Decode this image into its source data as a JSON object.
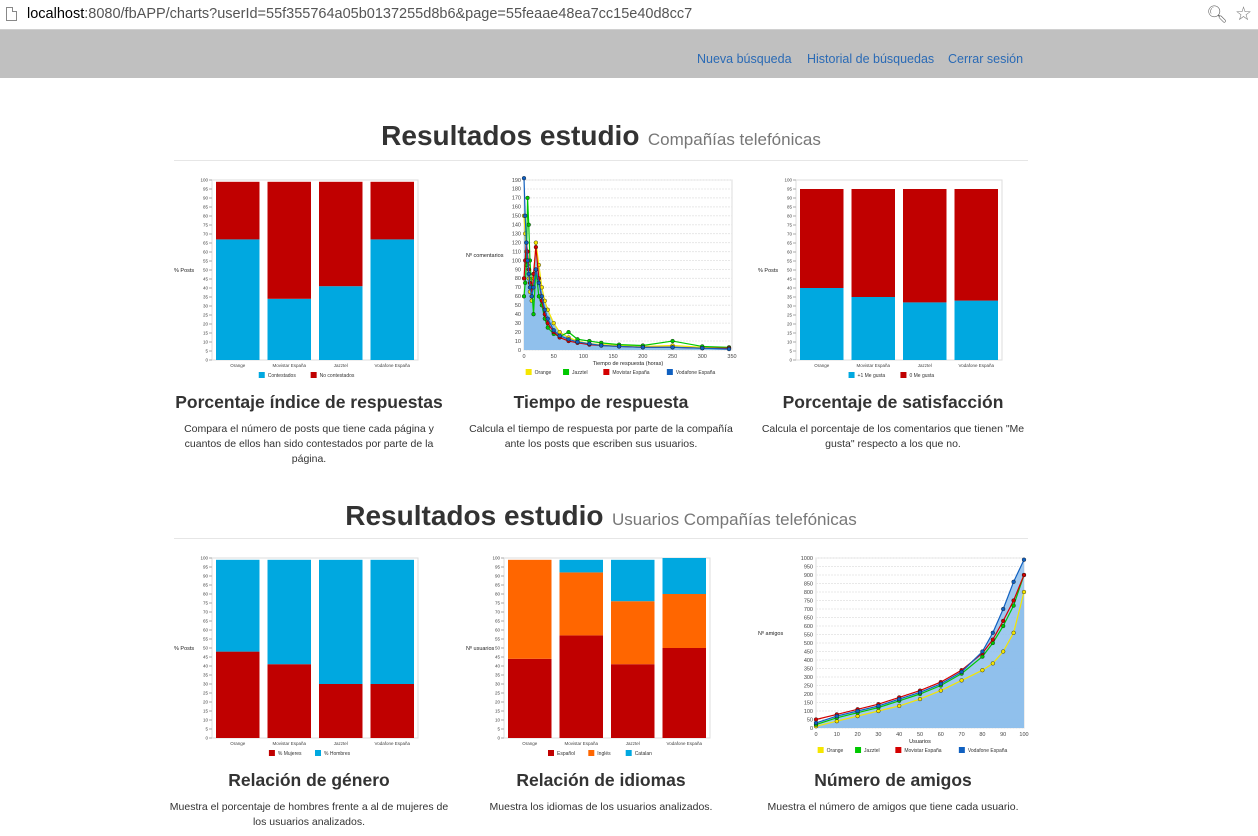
{
  "browser": {
    "url_host": "localhost",
    "url_rest": ":8080/fbAPP/charts?userId=55f355764a05b0137255d8b6&page=55feaae48ea7cc15e40d8cc7"
  },
  "nav": {
    "new_search": "Nueva búsqueda",
    "history": "Historial de búsquedas",
    "logout": "Cerrar sesión"
  },
  "sections": [
    {
      "title": "Resultados estudio",
      "subtitle": "Compañías telefónicas"
    },
    {
      "title": "Resultados estudio",
      "subtitle": "Usuarios Compañías telefónicas"
    }
  ],
  "cards": [
    {
      "title": "Porcentaje índice de respuestas",
      "desc_lines": [
        "Compara el número de posts que tiene cada página y",
        "cuantos de ellos han sido contestados por parte de la",
        "página."
      ]
    },
    {
      "title": "Tiempo de respuesta",
      "desc_lines": [
        "Calcula el tiempo de respuesta por parte de la compañía",
        "ante los posts que escriben sus usuarios."
      ]
    },
    {
      "title": "Porcentaje de satisfacción",
      "desc_lines": [
        "Calcula el porcentaje de los comentarios que tienen \"Me",
        "gusta\" respecto a los que no."
      ]
    },
    {
      "title": "Relación de género",
      "desc_lines": [
        "Muestra el porcentaje de hombres frente a al de mujeres de",
        "los usuarios analizados."
      ]
    },
    {
      "title": "Relación de idiomas",
      "desc_lines": [
        "Muestra los idiomas de los usuarios analizados."
      ]
    },
    {
      "title": "Número de amigos",
      "desc_lines": [
        "Muestra el número de amigos que tiene cada usuario."
      ]
    }
  ],
  "chart_data": [
    {
      "type": "bar",
      "stacked": true,
      "categories": [
        "Orange",
        "Movistar España",
        "Jazztel",
        "Vodafone España"
      ],
      "ylabel": "% Posts",
      "ylim": [
        0,
        100
      ],
      "series": [
        {
          "name": "Contestados",
          "color": "#00a8e0",
          "values": [
            67,
            34,
            41,
            67
          ]
        },
        {
          "name": "No contestados",
          "color": "#c00000",
          "values": [
            32,
            65,
            58,
            32
          ]
        }
      ]
    },
    {
      "type": "scatter",
      "connected": true,
      "xlabel": "Tiempo de respuesta (horas)",
      "ylabel": "Nº comentarios",
      "xlim": [
        0,
        350
      ],
      "ylim": [
        0,
        190
      ],
      "series_names": [
        "Orange",
        "Jazztel",
        "Movistar España",
        "Vodafone España"
      ],
      "series_colors": [
        "#f5e600",
        "#00c800",
        "#d40000",
        "#1060c0"
      ],
      "x": [
        0,
        2,
        4,
        6,
        8,
        10,
        13,
        16,
        20,
        25,
        30,
        35,
        40,
        50,
        60,
        75,
        90,
        110,
        130,
        160,
        200,
        250,
        300,
        345
      ],
      "series": [
        {
          "name": "Orange",
          "values": [
            150,
            130,
            110,
            95,
            80,
            65,
            55,
            80,
            120,
            95,
            70,
            55,
            45,
            30,
            20,
            14,
            10,
            7,
            6,
            5,
            4,
            5,
            3,
            2
          ]
        },
        {
          "name": "Jazztel",
          "values": [
            60,
            75,
            95,
            170,
            140,
            100,
            70,
            40,
            90,
            60,
            50,
            35,
            25,
            18,
            15,
            20,
            12,
            10,
            8,
            6,
            5,
            10,
            4,
            3
          ]
        },
        {
          "name": "Movistar España",
          "values": [
            80,
            100,
            120,
            110,
            90,
            75,
            60,
            85,
            115,
            80,
            55,
            40,
            30,
            20,
            14,
            10,
            8,
            6,
            5,
            4,
            3,
            3,
            2,
            2
          ]
        },
        {
          "name": "Vodafone España",
          "values": [
            192,
            150,
            120,
            100,
            85,
            70,
            60,
            70,
            90,
            75,
            60,
            45,
            35,
            22,
            16,
            12,
            9,
            7,
            5,
            4,
            3,
            3,
            2,
            1
          ]
        }
      ]
    },
    {
      "type": "bar",
      "stacked": true,
      "categories": [
        "Orange",
        "Movistar España",
        "Jazztel",
        "Vodafone España"
      ],
      "ylabel": "% Posts",
      "ylim": [
        0,
        100
      ],
      "series": [
        {
          "name": "+1 Me gusta",
          "color": "#00a8e0",
          "values": [
            40,
            35,
            32,
            33
          ]
        },
        {
          "name": "0 Me gusta",
          "color": "#c00000",
          "values": [
            55,
            60,
            63,
            62
          ]
        }
      ]
    },
    {
      "type": "bar",
      "stacked": true,
      "categories": [
        "Orange",
        "Movistar España",
        "Jazztel",
        "Vodafone España"
      ],
      "ylabel": "% Posts",
      "ylim": [
        0,
        100
      ],
      "series": [
        {
          "name": "% Mujeres",
          "color": "#c00000",
          "values": [
            48,
            41,
            30,
            30
          ]
        },
        {
          "name": "% Hombres",
          "color": "#00a8e0",
          "values": [
            51,
            58,
            69,
            69
          ]
        }
      ]
    },
    {
      "type": "bar",
      "stacked": true,
      "categories": [
        "Orange",
        "Movistar España",
        "Jazztel",
        "Vodafone España"
      ],
      "ylabel": "Nº usuarios",
      "ylim": [
        0,
        100
      ],
      "series": [
        {
          "name": "Español",
          "color": "#c00000",
          "values": [
            44,
            57,
            41,
            50
          ]
        },
        {
          "name": "Inglés",
          "color": "#ff6600",
          "values": [
            55,
            35,
            35,
            30
          ]
        },
        {
          "name": "Catalan",
          "color": "#00a8e0",
          "values": [
            0,
            7,
            23,
            20
          ]
        }
      ]
    },
    {
      "type": "line",
      "xlabel": "Usuarios",
      "ylabel": "Nº amigos",
      "xlim": [
        0,
        100
      ],
      "ylim": [
        0,
        1000
      ],
      "series_names": [
        "Orange",
        "Jazztel",
        "Movistar España",
        "Vodafone España"
      ],
      "series_colors": [
        "#f5e600",
        "#00c800",
        "#d40000",
        "#1060c0"
      ],
      "x": [
        0,
        10,
        20,
        30,
        40,
        50,
        60,
        70,
        80,
        85,
        90,
        95,
        100
      ],
      "series": [
        {
          "name": "Orange",
          "values": [
            10,
            40,
            70,
            100,
            130,
            170,
            220,
            280,
            340,
            380,
            450,
            560,
            800
          ]
        },
        {
          "name": "Jazztel",
          "values": [
            20,
            60,
            90,
            120,
            160,
            200,
            250,
            320,
            420,
            500,
            600,
            720,
            900
          ]
        },
        {
          "name": "Movistar España",
          "values": [
            50,
            80,
            110,
            140,
            180,
            220,
            270,
            340,
            440,
            520,
            630,
            750,
            900
          ]
        },
        {
          "name": "Vodafone España",
          "values": [
            30,
            70,
            100,
            130,
            170,
            210,
            260,
            330,
            450,
            560,
            700,
            860,
            990
          ]
        }
      ]
    }
  ]
}
